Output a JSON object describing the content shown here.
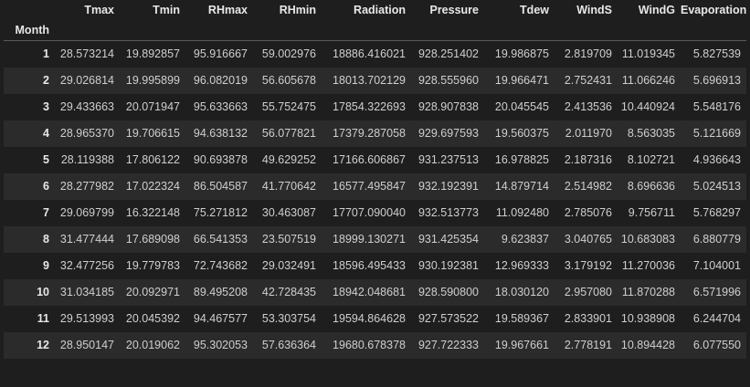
{
  "table": {
    "index_name": "Month",
    "columns": [
      "Tmax",
      "Tmin",
      "RHmax",
      "RHmin",
      "Radiation",
      "Pressure",
      "Tdew",
      "WindS",
      "WindG",
      "Evaporation"
    ],
    "rows": [
      {
        "index": "1",
        "values": [
          "28.573214",
          "19.892857",
          "95.916667",
          "59.002976",
          "18886.416021",
          "928.251402",
          "19.986875",
          "2.819709",
          "11.019345",
          "5.827539"
        ]
      },
      {
        "index": "2",
        "values": [
          "29.026814",
          "19.995899",
          "96.082019",
          "56.605678",
          "18013.702129",
          "928.555960",
          "19.966471",
          "2.752431",
          "11.066246",
          "5.696913"
        ]
      },
      {
        "index": "3",
        "values": [
          "29.433663",
          "20.071947",
          "95.633663",
          "55.752475",
          "17854.322693",
          "928.907838",
          "20.045545",
          "2.413536",
          "10.440924",
          "5.548176"
        ]
      },
      {
        "index": "4",
        "values": [
          "28.965370",
          "19.706615",
          "94.638132",
          "56.077821",
          "17379.287058",
          "929.697593",
          "19.560375",
          "2.011970",
          "8.563035",
          "5.121669"
        ]
      },
      {
        "index": "5",
        "values": [
          "28.119388",
          "17.806122",
          "90.693878",
          "49.629252",
          "17166.606867",
          "931.237513",
          "16.978825",
          "2.187316",
          "8.102721",
          "4.936643"
        ]
      },
      {
        "index": "6",
        "values": [
          "28.277982",
          "17.022324",
          "86.504587",
          "41.770642",
          "16577.495847",
          "932.192391",
          "14.879714",
          "2.514982",
          "8.696636",
          "5.024513"
        ]
      },
      {
        "index": "7",
        "values": [
          "29.069799",
          "16.322148",
          "75.271812",
          "30.463087",
          "17707.090040",
          "932.513773",
          "11.092480",
          "2.785076",
          "9.756711",
          "5.768297"
        ]
      },
      {
        "index": "8",
        "values": [
          "31.477444",
          "17.689098",
          "66.541353",
          "23.507519",
          "18999.130271",
          "931.425354",
          "9.623837",
          "3.040765",
          "10.683083",
          "6.880779"
        ]
      },
      {
        "index": "9",
        "values": [
          "32.477256",
          "19.779783",
          "72.743682",
          "29.032491",
          "18596.495433",
          "930.192381",
          "12.969333",
          "3.179192",
          "11.270036",
          "7.104001"
        ]
      },
      {
        "index": "10",
        "values": [
          "31.034185",
          "20.092971",
          "89.495208",
          "42.728435",
          "18942.048681",
          "928.590800",
          "18.030120",
          "2.957080",
          "11.870288",
          "6.571996"
        ]
      },
      {
        "index": "11",
        "values": [
          "29.513993",
          "20.045392",
          "94.467577",
          "53.303754",
          "19594.864628",
          "927.573522",
          "19.589367",
          "2.833901",
          "10.938908",
          "6.244704"
        ]
      },
      {
        "index": "12",
        "values": [
          "28.950147",
          "20.019062",
          "95.302053",
          "57.636364",
          "19680.678378",
          "927.722333",
          "19.967661",
          "2.778191",
          "10.894428",
          "6.077550"
        ]
      }
    ]
  }
}
